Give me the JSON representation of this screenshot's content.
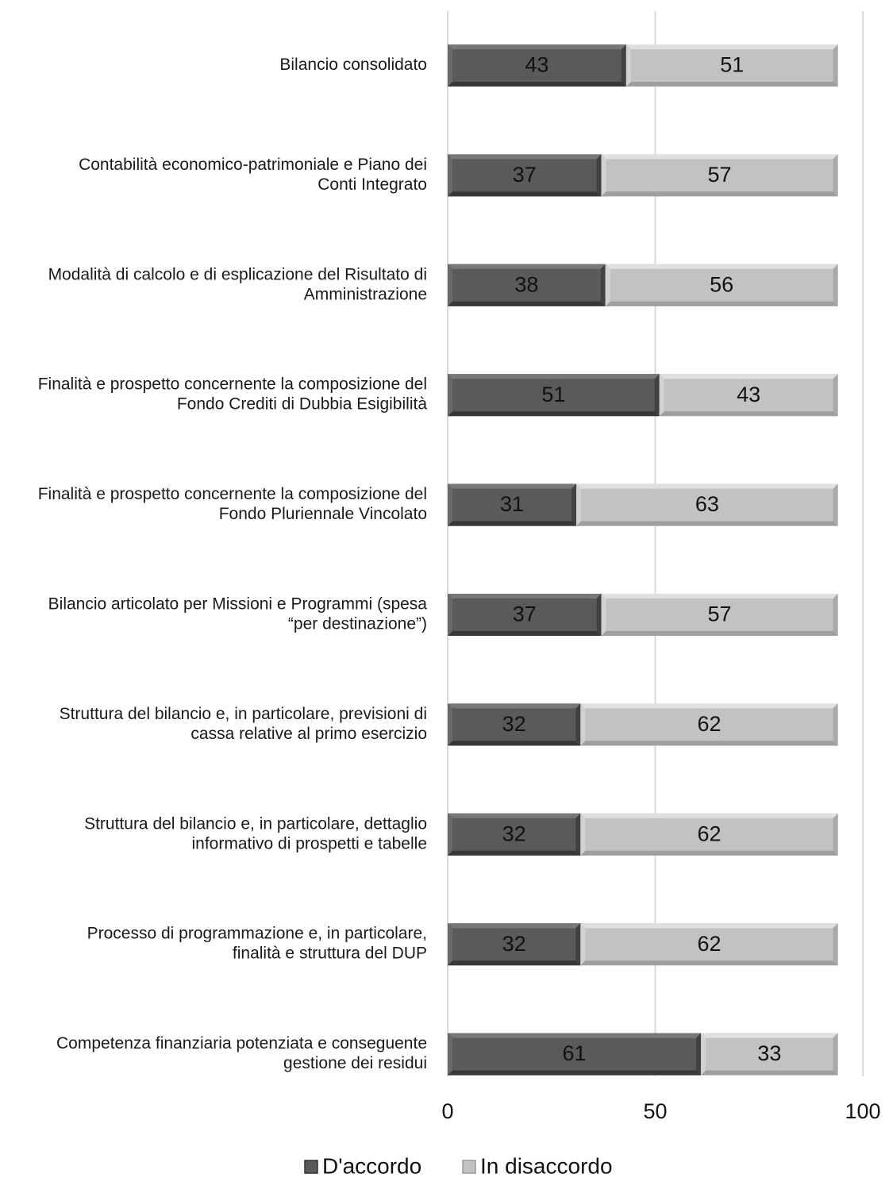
{
  "chart_data": {
    "type": "bar",
    "orientation": "horizontal",
    "stacked": true,
    "categories": [
      "Bilancio consolidato",
      "Contabilità economico-patrimoniale e Piano dei Conti Integrato",
      "Modalità di calcolo e di esplicazione del Risultato di Amministrazione",
      "Finalità e prospetto concernente la composizione del Fondo Crediti di Dubbia Esigibilità",
      "Finalità e prospetto concernente la composizione del Fondo Pluriennale Vincolato",
      "Bilancio articolato per Missioni e Programmi (spesa “per destinazione”)",
      "Struttura del bilancio e, in particolare, previsioni di cassa relative al primo esercizio",
      "Struttura del bilancio e, in particolare, dettaglio informativo di prospetti e tabelle",
      "Processo di programmazione e, in particolare, finalità e struttura del DUP",
      "Competenza finanziaria potenziata e conseguente gestione dei residui"
    ],
    "category_lines": [
      [
        "Bilancio consolidato"
      ],
      [
        "Contabilità economico-patrimoniale e Piano dei",
        "Conti Integrato"
      ],
      [
        "Modalità di calcolo e di esplicazione del Risultato di",
        "Amministrazione"
      ],
      [
        "Finalità e prospetto concernente la composizione del",
        "Fondo Crediti di Dubbia Esigibilità"
      ],
      [
        "Finalità e prospetto concernente la composizione del",
        "Fondo Pluriennale Vincolato"
      ],
      [
        "Bilancio articolato per Missioni e Programmi (spesa",
        "“per destinazione”)"
      ],
      [
        "Struttura del bilancio e, in particolare, previsioni di",
        "cassa relative al primo esercizio"
      ],
      [
        "Struttura del bilancio e, in particolare, dettaglio",
        "informativo di prospetti e tabelle"
      ],
      [
        "Processo di programmazione e, in particolare,",
        "finalità e struttura del DUP"
      ],
      [
        "Competenza finanziaria potenziata e conseguente",
        "gestione dei residui"
      ]
    ],
    "series": [
      {
        "name": "D'accordo",
        "color": "#5a5a5a",
        "values": [
          43,
          37,
          38,
          51,
          31,
          37,
          32,
          32,
          32,
          61
        ]
      },
      {
        "name": "In disaccordo",
        "color": "#c2c2c2",
        "values": [
          51,
          57,
          56,
          43,
          63,
          57,
          62,
          62,
          62,
          33
        ]
      }
    ],
    "xlim": [
      0,
      100
    ],
    "xticks": [
      0,
      50,
      100
    ],
    "xtick_labels": [
      "0",
      "50",
      "100"
    ],
    "grid": true,
    "legend_position": "bottom",
    "title": "",
    "xlabel": "",
    "ylabel": ""
  }
}
